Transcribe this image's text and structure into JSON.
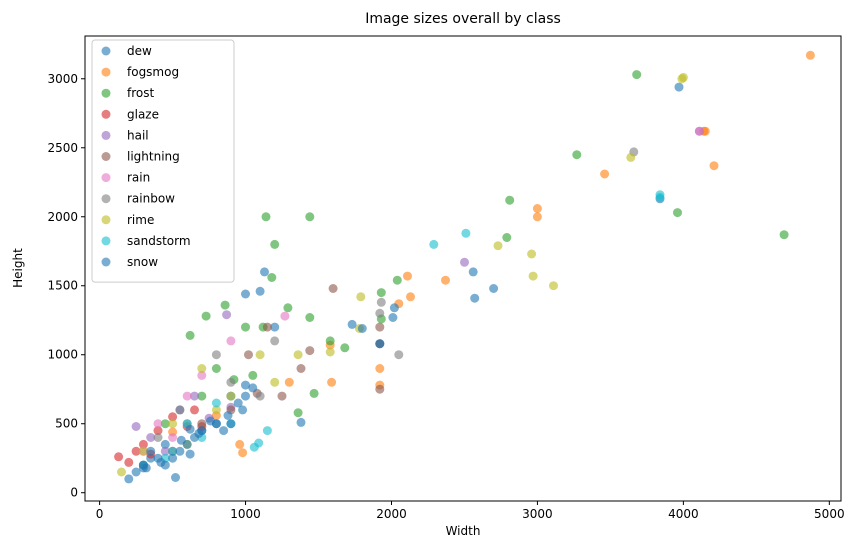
{
  "chart_data": {
    "type": "scatter",
    "title": "Image sizes overall by class",
    "xlabel": "Width",
    "ylabel": "Height",
    "xlim": [
      -100,
      5080
    ],
    "ylim": [
      -60,
      3310
    ],
    "xticks": [
      0,
      1000,
      2000,
      3000,
      4000,
      5000
    ],
    "yticks": [
      0,
      500,
      1000,
      1500,
      2000,
      2500,
      3000
    ],
    "grid": false,
    "legend_position": "top-left",
    "series": [
      {
        "name": "dew",
        "color": "#1f77b4",
        "points": [
          [
            3970,
            2940
          ],
          [
            3840,
            2130
          ],
          [
            2560,
            1600
          ],
          [
            2570,
            1410
          ],
          [
            2700,
            1480
          ],
          [
            1920,
            1080
          ],
          [
            1380,
            510
          ],
          [
            1130,
            1600
          ],
          [
            1100,
            1460
          ],
          [
            1000,
            1440
          ],
          [
            1200,
            1200
          ],
          [
            620,
            280
          ],
          [
            520,
            110
          ],
          [
            300,
            180
          ],
          [
            800,
            500
          ],
          [
            900,
            700
          ],
          [
            450,
            350
          ],
          [
            350,
            250
          ],
          [
            700,
            450
          ],
          [
            1000,
            780
          ]
        ]
      },
      {
        "name": "fogsmog",
        "color": "#ff7f0e",
        "points": [
          [
            4870,
            3170
          ],
          [
            4150,
            2620
          ],
          [
            4140,
            2620
          ],
          [
            4210,
            2370
          ],
          [
            3460,
            2310
          ],
          [
            3000,
            2060
          ],
          [
            3000,
            2000
          ],
          [
            2370,
            1540
          ],
          [
            2110,
            1570
          ],
          [
            2050,
            1370
          ],
          [
            2130,
            1420
          ],
          [
            1920,
            900
          ],
          [
            1920,
            780
          ],
          [
            1300,
            800
          ],
          [
            1590,
            800
          ],
          [
            1580,
            1070
          ],
          [
            980,
            290
          ],
          [
            960,
            350
          ],
          [
            800,
            560
          ],
          [
            500,
            440
          ]
        ]
      },
      {
        "name": "frost",
        "color": "#2ca02c",
        "points": [
          [
            3680,
            3030
          ],
          [
            4690,
            1870
          ],
          [
            3960,
            2030
          ],
          [
            3270,
            2450
          ],
          [
            2810,
            2120
          ],
          [
            2790,
            1850
          ],
          [
            2040,
            1540
          ],
          [
            1930,
            1450
          ],
          [
            1930,
            1260
          ],
          [
            1440,
            2000
          ],
          [
            1140,
            2000
          ],
          [
            1200,
            1800
          ],
          [
            1180,
            1560
          ],
          [
            1440,
            1270
          ],
          [
            1290,
            1340
          ],
          [
            1580,
            1100
          ],
          [
            1680,
            1050
          ],
          [
            1470,
            720
          ],
          [
            1360,
            580
          ],
          [
            860,
            1360
          ],
          [
            730,
            1280
          ],
          [
            620,
            1140
          ],
          [
            1000,
            1200
          ],
          [
            1120,
            1200
          ],
          [
            800,
            900
          ],
          [
            700,
            700
          ],
          [
            550,
            600
          ],
          [
            450,
            500
          ],
          [
            920,
            820
          ],
          [
            1050,
            850
          ]
        ]
      },
      {
        "name": "glaze",
        "color": "#d62728",
        "points": [
          [
            130,
            260
          ],
          [
            200,
            220
          ],
          [
            250,
            300
          ],
          [
            300,
            350
          ],
          [
            400,
            450
          ],
          [
            500,
            550
          ],
          [
            650,
            600
          ],
          [
            600,
            480
          ],
          [
            350,
            280
          ],
          [
            700,
            480
          ]
        ]
      },
      {
        "name": "hail",
        "color": "#9467bd",
        "points": [
          [
            2500,
            1670
          ],
          [
            4110,
            2620
          ],
          [
            870,
            1290
          ],
          [
            350,
            400
          ],
          [
            550,
            600
          ],
          [
            250,
            480
          ],
          [
            450,
            300
          ],
          [
            650,
            700
          ],
          [
            750,
            540
          ],
          [
            900,
            620
          ]
        ]
      },
      {
        "name": "lightning",
        "color": "#8c564b",
        "points": [
          [
            1600,
            1480
          ],
          [
            1920,
            1200
          ],
          [
            1920,
            1080
          ],
          [
            1920,
            750
          ],
          [
            1440,
            1030
          ],
          [
            1150,
            1200
          ],
          [
            1020,
            1000
          ],
          [
            900,
            600
          ],
          [
            500,
            300
          ],
          [
            300,
            200
          ],
          [
            700,
            500
          ],
          [
            1080,
            720
          ],
          [
            1250,
            700
          ],
          [
            1380,
            900
          ]
        ]
      },
      {
        "name": "rain",
        "color": "#e377c2",
        "points": [
          [
            1270,
            1280
          ],
          [
            4110,
            2620
          ],
          [
            900,
            1100
          ],
          [
            600,
            700
          ],
          [
            400,
            500
          ],
          [
            700,
            850
          ],
          [
            500,
            400
          ],
          [
            300,
            300
          ]
        ]
      },
      {
        "name": "rainbow",
        "color": "#7f7f7f",
        "points": [
          [
            3660,
            2470
          ],
          [
            1930,
            1380
          ],
          [
            2050,
            1000
          ],
          [
            1920,
            1300
          ],
          [
            1200,
            1100
          ],
          [
            900,
            800
          ],
          [
            600,
            500
          ],
          [
            400,
            400
          ],
          [
            800,
            1000
          ],
          [
            1100,
            700
          ]
        ]
      },
      {
        "name": "rime",
        "color": "#bcbd22",
        "points": [
          [
            4000,
            3010
          ],
          [
            3990,
            3000
          ],
          [
            3640,
            2430
          ],
          [
            2960,
            1730
          ],
          [
            2730,
            1790
          ],
          [
            2970,
            1570
          ],
          [
            3110,
            1500
          ],
          [
            1790,
            1420
          ],
          [
            1780,
            1190
          ],
          [
            1580,
            1020
          ],
          [
            1360,
            1000
          ],
          [
            1100,
            1000
          ],
          [
            900,
            700
          ],
          [
            700,
            900
          ],
          [
            500,
            500
          ],
          [
            300,
            300
          ],
          [
            150,
            150
          ],
          [
            800,
            600
          ],
          [
            1200,
            800
          ],
          [
            600,
            350
          ]
        ]
      },
      {
        "name": "sandstorm",
        "color": "#17becf",
        "points": [
          [
            3840,
            2160
          ],
          [
            3840,
            2140
          ],
          [
            2510,
            1880
          ],
          [
            2290,
            1800
          ],
          [
            1090,
            360
          ],
          [
            1060,
            330
          ],
          [
            900,
            500
          ],
          [
            700,
            400
          ],
          [
            500,
            300
          ],
          [
            300,
            200
          ],
          [
            1150,
            450
          ],
          [
            800,
            650
          ],
          [
            600,
            500
          ],
          [
            450,
            250
          ]
        ]
      },
      {
        "name": "snow",
        "color": "#1f77b4",
        "points": [
          [
            2020,
            1340
          ],
          [
            2010,
            1270
          ],
          [
            1920,
            1080
          ],
          [
            1800,
            1190
          ],
          [
            1730,
            1220
          ],
          [
            900,
            500
          ],
          [
            850,
            450
          ],
          [
            800,
            500
          ],
          [
            700,
            450
          ],
          [
            650,
            400
          ],
          [
            600,
            350
          ],
          [
            550,
            300
          ],
          [
            500,
            250
          ],
          [
            450,
            200
          ],
          [
            400,
            250
          ],
          [
            350,
            300
          ],
          [
            300,
            200
          ],
          [
            250,
            150
          ],
          [
            200,
            100
          ],
          [
            950,
            650
          ],
          [
            1000,
            700
          ],
          [
            880,
            560
          ],
          [
            760,
            520
          ],
          [
            680,
            430
          ],
          [
            560,
            380
          ],
          [
            420,
            220
          ],
          [
            320,
            180
          ],
          [
            1050,
            760
          ],
          [
            980,
            600
          ],
          [
            620,
            460
          ]
        ]
      }
    ]
  }
}
